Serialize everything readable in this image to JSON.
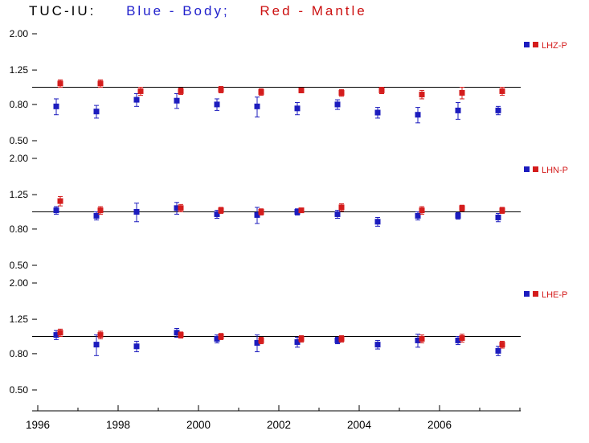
{
  "title": {
    "station": "TUC-IU:",
    "body": "Blue - Body;",
    "mantle": "Red - Mantle"
  },
  "colors": {
    "blue": "#1c1cbe",
    "red": "#d41c1c",
    "axis": "#000000",
    "reference_line": "#000000"
  },
  "x_axis": {
    "range": [
      1996,
      2008.1
    ],
    "labeled_ticks": [
      1996,
      1998,
      2000,
      2002,
      2004,
      2006
    ],
    "minor_tick_step": 1
  },
  "chart_data": [
    {
      "type": "scatter",
      "name": "LHZ-P",
      "yscale": "log",
      "ylim": [
        0.5,
        2.0
      ],
      "yticks": [
        2.0,
        1.25,
        0.8,
        0.5
      ],
      "reference_line": 1.0,
      "x": [
        1996.5,
        1997.5,
        1998.5,
        1999.5,
        2000.5,
        2001.5,
        2002.5,
        2003.5,
        2004.5,
        2005.5,
        2006.5,
        2007.5
      ],
      "series": [
        {
          "name": "Body",
          "color": "blue",
          "values": [
            0.78,
            0.73,
            0.85,
            0.84,
            0.8,
            0.78,
            0.76,
            0.8,
            0.72,
            0.7,
            0.74,
            0.74
          ],
          "errors": [
            0.08,
            0.06,
            0.07,
            0.08,
            0.06,
            0.1,
            0.06,
            0.05,
            0.05,
            0.07,
            0.08,
            0.04
          ]
        },
        {
          "name": "Mantle",
          "color": "red",
          "values": [
            1.05,
            1.05,
            0.95,
            0.95,
            0.97,
            0.94,
            0.96,
            0.93,
            0.96,
            0.91,
            0.93,
            0.95
          ],
          "errors": [
            0.05,
            0.05,
            0.05,
            0.04,
            0.04,
            0.04,
            0.03,
            0.04,
            0.04,
            0.05,
            0.07,
            0.05
          ]
        }
      ]
    },
    {
      "type": "scatter",
      "name": "LHN-P",
      "yscale": "log",
      "ylim": [
        0.5,
        2.0
      ],
      "yticks": [
        2.0,
        1.25,
        0.8,
        0.5
      ],
      "reference_line": 1.0,
      "x": [
        1996.5,
        1997.5,
        1998.5,
        1999.5,
        2000.5,
        2001.5,
        2002.5,
        2003.5,
        2004.5,
        2005.5,
        2006.5,
        2007.5
      ],
      "series": [
        {
          "name": "Body",
          "color": "blue",
          "values": [
            1.02,
            0.95,
            1.0,
            1.05,
            0.97,
            0.96,
            1.0,
            0.97,
            0.88,
            0.95,
            0.95,
            0.93
          ],
          "errors": [
            0.05,
            0.05,
            0.12,
            0.08,
            0.05,
            0.1,
            0.04,
            0.05,
            0.05,
            0.05,
            0.04,
            0.05
          ]
        },
        {
          "name": "Mantle",
          "color": "red",
          "values": [
            1.15,
            1.02,
            null,
            1.05,
            1.02,
            1.0,
            1.02,
            1.06,
            null,
            1.02,
            1.05,
            1.02
          ],
          "errors": [
            0.07,
            0.05,
            null,
            0.05,
            0.04,
            0.04,
            0.03,
            0.05,
            null,
            0.05,
            0.04,
            0.04
          ]
        }
      ]
    },
    {
      "type": "scatter",
      "name": "LHE-P",
      "yscale": "log",
      "ylim": [
        0.5,
        2.0
      ],
      "yticks": [
        2.0,
        1.25,
        0.8,
        0.5
      ],
      "reference_line": 1.0,
      "x": [
        1996.5,
        1997.5,
        1998.5,
        1999.5,
        2000.5,
        2001.5,
        2002.5,
        2003.5,
        2004.5,
        2005.5,
        2006.5,
        2007.5
      ],
      "series": [
        {
          "name": "Body",
          "color": "blue",
          "values": [
            1.02,
            0.9,
            0.88,
            1.05,
            0.97,
            0.92,
            0.93,
            0.95,
            0.9,
            0.95,
            0.95,
            0.83
          ],
          "errors": [
            0.06,
            0.12,
            0.06,
            0.06,
            0.05,
            0.1,
            0.06,
            0.04,
            0.05,
            0.08,
            0.05,
            0.05
          ]
        },
        {
          "name": "Mantle",
          "color": "red",
          "values": [
            1.05,
            1.02,
            null,
            1.02,
            1.0,
            0.95,
            0.97,
            0.97,
            null,
            0.97,
            0.98,
            0.9
          ],
          "errors": [
            0.05,
            0.05,
            null,
            0.04,
            0.04,
            0.04,
            0.04,
            0.04,
            null,
            0.05,
            0.05,
            0.04
          ]
        }
      ]
    }
  ]
}
